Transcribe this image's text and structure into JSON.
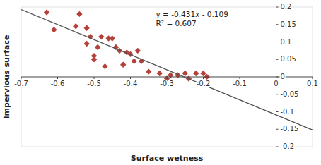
{
  "chart_data": {
    "type": "scatter",
    "xlabel": "Surface wetness",
    "ylabel": "Impervious surface",
    "annotations": [
      "y = -0.431x - 0.109",
      "R² = 0.607"
    ],
    "series": [
      {
        "type": "scatter",
        "color": "#b5413b",
        "marker": "diamond",
        "x": [
          -0.63,
          -0.61,
          -0.55,
          -0.54,
          -0.52,
          -0.52,
          -0.51,
          -0.5,
          -0.5,
          -0.49,
          -0.48,
          -0.47,
          -0.46,
          -0.45,
          -0.44,
          -0.43,
          -0.42,
          -0.41,
          -0.4,
          -0.39,
          -0.38,
          -0.37,
          -0.35,
          -0.32,
          -0.3,
          -0.29,
          -0.27,
          -0.25,
          -0.24,
          -0.22,
          -0.2,
          -0.19
        ],
        "values": [
          0.185,
          0.135,
          0.145,
          0.18,
          0.095,
          0.14,
          0.115,
          0.05,
          0.06,
          0.085,
          0.115,
          0.03,
          0.11,
          0.11,
          0.085,
          0.075,
          0.035,
          0.07,
          0.065,
          0.045,
          0.075,
          0.045,
          0.015,
          0.01,
          -0.005,
          0.005,
          0.005,
          0.01,
          -0.005,
          0.01,
          0.01,
          0.0
        ]
      },
      {
        "type": "line",
        "color": "#555555",
        "x": [
          -0.7,
          0.1
        ],
        "values": [
          0.1927,
          -0.1521
        ]
      }
    ],
    "xlim": [
      -0.7,
      0.1
    ],
    "ylim": [
      -0.2,
      0.2
    ],
    "xticks": [
      -0.7,
      -0.6,
      -0.5,
      -0.4,
      -0.3,
      -0.2,
      -0.1,
      0,
      0.1
    ],
    "yticks": [
      -0.2,
      -0.15,
      -0.1,
      -0.05,
      0,
      0.05,
      0.1,
      0.15,
      0.2
    ],
    "grid": false
  }
}
